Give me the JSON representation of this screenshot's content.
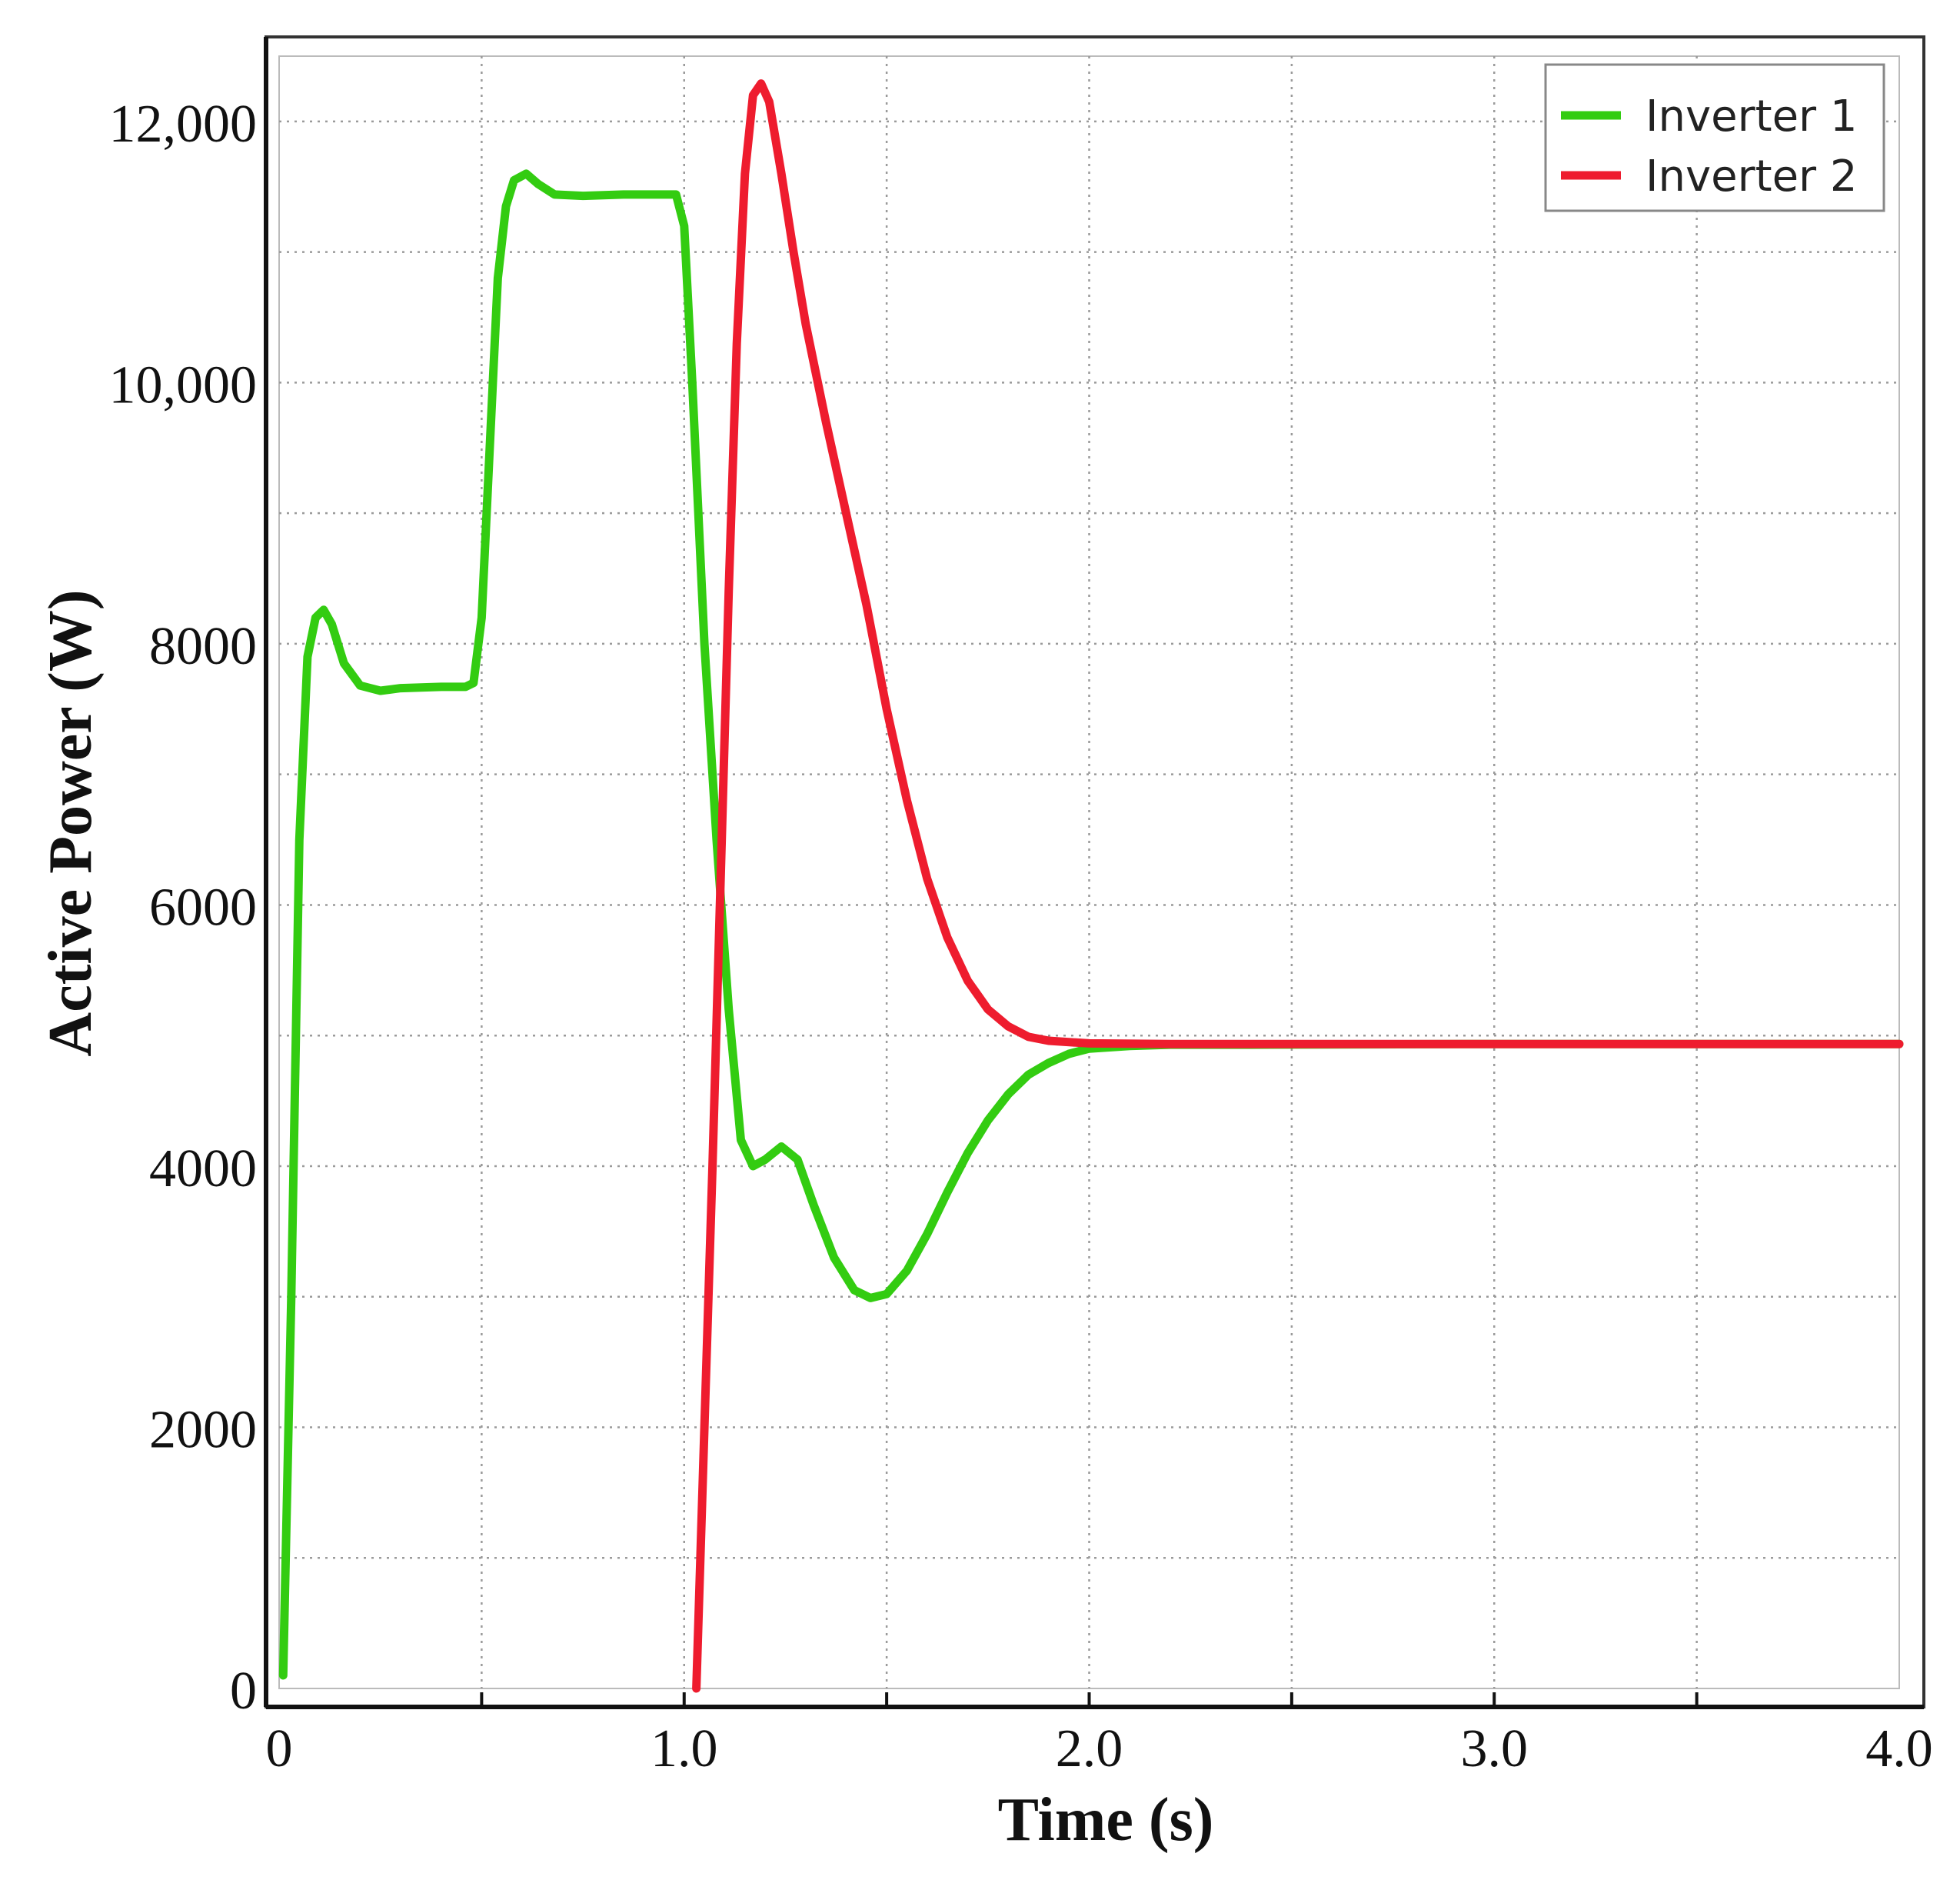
{
  "chart_data": {
    "type": "line",
    "xlabel": "Time (s)",
    "ylabel": "Active Power (W)",
    "xlim": [
      0,
      4.0
    ],
    "ylim": [
      0,
      12500
    ],
    "grid": true,
    "legend_position": "top-right",
    "x_ticks": [
      {
        "value": 0,
        "label": "0"
      },
      {
        "value": 1.0,
        "label": "1.0"
      },
      {
        "value": 2.0,
        "label": "2.0"
      },
      {
        "value": 3.0,
        "label": "3.0"
      },
      {
        "value": 4.0,
        "label": "4.0"
      }
    ],
    "y_ticks": [
      {
        "value": 0,
        "label": "0"
      },
      {
        "value": 2000,
        "label": "2000"
      },
      {
        "value": 4000,
        "label": "4000"
      },
      {
        "value": 6000,
        "label": "6000"
      },
      {
        "value": 8000,
        "label": "8000"
      },
      {
        "value": 10000,
        "label": "10,000"
      },
      {
        "value": 12000,
        "label": "12,000"
      }
    ],
    "x_grid": [
      0.5,
      1.0,
      1.5,
      2.0,
      2.5,
      3.0,
      3.5
    ],
    "y_grid": [
      1000,
      2000,
      3000,
      4000,
      5000,
      6000,
      7000,
      8000,
      9000,
      10000,
      11000,
      12000
    ],
    "series": [
      {
        "name": "Inverter 1",
        "color": "#33cc11",
        "points": [
          [
            0.01,
            100
          ],
          [
            0.03,
            3000
          ],
          [
            0.05,
            6500
          ],
          [
            0.07,
            7900
          ],
          [
            0.09,
            8200
          ],
          [
            0.11,
            8260
          ],
          [
            0.13,
            8150
          ],
          [
            0.16,
            7850
          ],
          [
            0.2,
            7680
          ],
          [
            0.25,
            7640
          ],
          [
            0.3,
            7660
          ],
          [
            0.4,
            7670
          ],
          [
            0.46,
            7670
          ],
          [
            0.48,
            7700
          ],
          [
            0.5,
            8200
          ],
          [
            0.52,
            9500
          ],
          [
            0.54,
            10800
          ],
          [
            0.56,
            11350
          ],
          [
            0.58,
            11550
          ],
          [
            0.61,
            11600
          ],
          [
            0.64,
            11520
          ],
          [
            0.68,
            11440
          ],
          [
            0.75,
            11430
          ],
          [
            0.85,
            11440
          ],
          [
            0.95,
            11440
          ],
          [
            0.98,
            11440
          ],
          [
            1.0,
            11200
          ],
          [
            1.02,
            10000
          ],
          [
            1.05,
            8000
          ],
          [
            1.08,
            6500
          ],
          [
            1.11,
            5200
          ],
          [
            1.14,
            4200
          ],
          [
            1.17,
            4000
          ],
          [
            1.2,
            4050
          ],
          [
            1.24,
            4150
          ],
          [
            1.28,
            4050
          ],
          [
            1.32,
            3700
          ],
          [
            1.37,
            3300
          ],
          [
            1.42,
            3050
          ],
          [
            1.46,
            2990
          ],
          [
            1.5,
            3020
          ],
          [
            1.55,
            3200
          ],
          [
            1.6,
            3480
          ],
          [
            1.65,
            3800
          ],
          [
            1.7,
            4100
          ],
          [
            1.75,
            4350
          ],
          [
            1.8,
            4550
          ],
          [
            1.85,
            4700
          ],
          [
            1.9,
            4790
          ],
          [
            1.95,
            4860
          ],
          [
            2.0,
            4900
          ],
          [
            2.1,
            4920
          ],
          [
            2.2,
            4930
          ],
          [
            2.4,
            4930
          ],
          [
            3.0,
            4935
          ],
          [
            4.0,
            4935
          ]
        ]
      },
      {
        "name": "Inverter 2",
        "color": "#ee1c2e",
        "points": [
          [
            1.03,
            0
          ],
          [
            1.05,
            2000
          ],
          [
            1.07,
            4000
          ],
          [
            1.09,
            6200
          ],
          [
            1.11,
            8400
          ],
          [
            1.13,
            10300
          ],
          [
            1.15,
            11600
          ],
          [
            1.17,
            12200
          ],
          [
            1.19,
            12290
          ],
          [
            1.21,
            12150
          ],
          [
            1.24,
            11600
          ],
          [
            1.27,
            11000
          ],
          [
            1.3,
            10450
          ],
          [
            1.35,
            9700
          ],
          [
            1.4,
            9000
          ],
          [
            1.45,
            8300
          ],
          [
            1.5,
            7500
          ],
          [
            1.55,
            6800
          ],
          [
            1.6,
            6200
          ],
          [
            1.65,
            5750
          ],
          [
            1.7,
            5420
          ],
          [
            1.75,
            5200
          ],
          [
            1.8,
            5070
          ],
          [
            1.85,
            4990
          ],
          [
            1.9,
            4960
          ],
          [
            2.0,
            4940
          ],
          [
            2.2,
            4935
          ],
          [
            3.0,
            4935
          ],
          [
            4.0,
            4935
          ]
        ]
      }
    ]
  }
}
